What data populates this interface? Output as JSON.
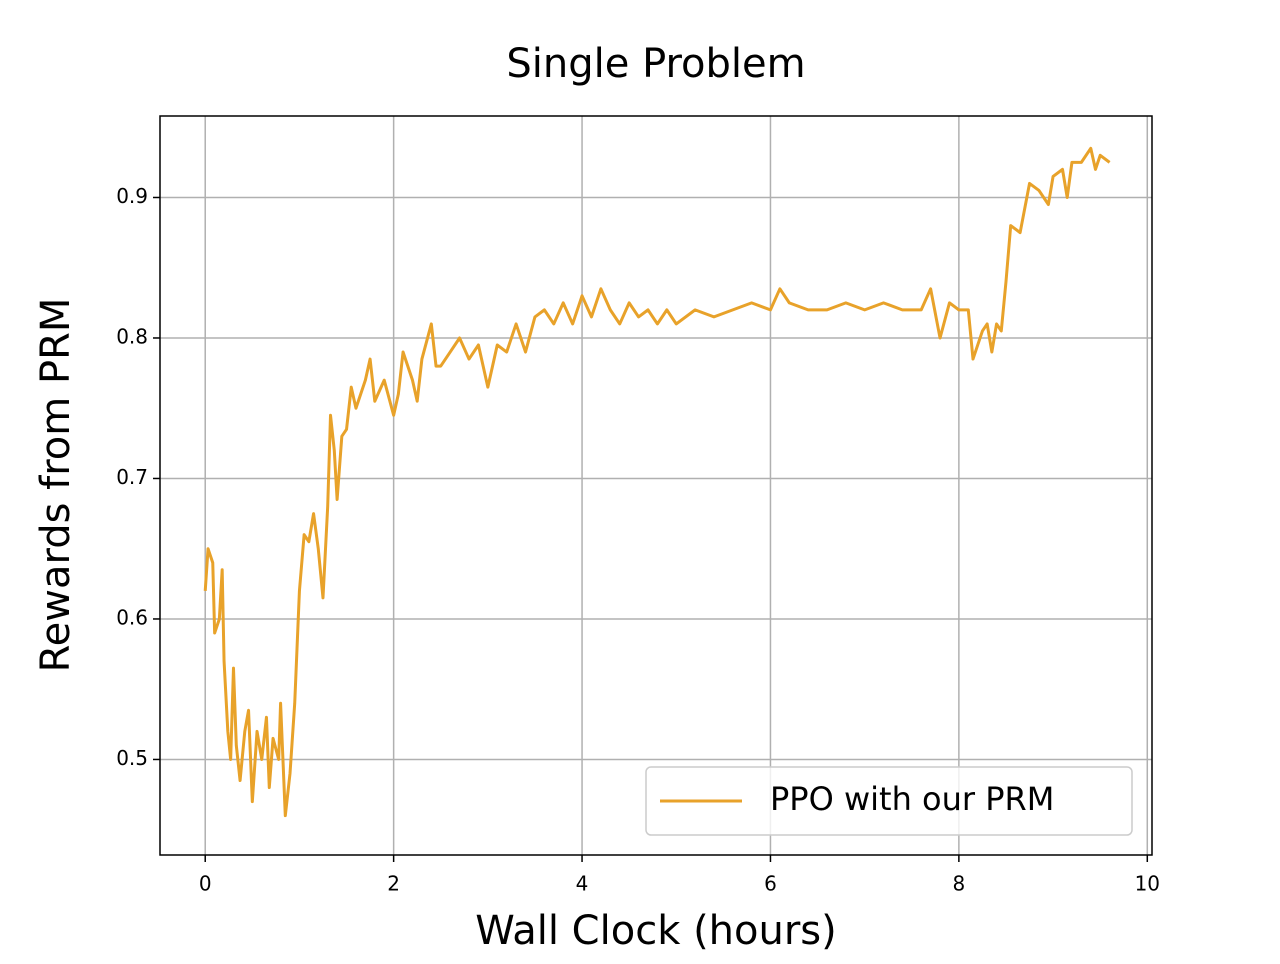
{
  "chart_data": {
    "type": "line",
    "title": "Single Problem",
    "x_label": "Wall Clock (hours)",
    "y_label": "Rewards from PRM",
    "xlim": [
      -0.48,
      10.05
    ],
    "ylim": [
      0.432,
      0.958
    ],
    "xticks": [
      0,
      2,
      4,
      6,
      8,
      10
    ],
    "yticks": [
      0.5,
      0.6,
      0.7,
      0.8,
      0.9
    ],
    "grid": true,
    "legend": "lower right",
    "x": [
      0,
      0.03,
      0.08,
      0.1,
      0.15,
      0.18,
      0.2,
      0.24,
      0.27,
      0.3,
      0.33,
      0.37,
      0.42,
      0.46,
      0.5,
      0.55,
      0.6,
      0.65,
      0.68,
      0.72,
      0.78,
      0.8,
      0.85,
      0.9,
      0.95,
      1.0,
      1.05,
      1.1,
      1.15,
      1.2,
      1.25,
      1.3,
      1.33,
      1.37,
      1.4,
      1.45,
      1.5,
      1.55,
      1.6,
      1.7,
      1.75,
      1.8,
      1.9,
      2.0,
      2.05,
      2.1,
      2.2,
      2.25,
      2.3,
      2.4,
      2.45,
      2.5,
      2.6,
      2.7,
      2.8,
      2.9,
      3.0,
      3.1,
      3.2,
      3.3,
      3.4,
      3.5,
      3.6,
      3.7,
      3.8,
      3.9,
      4.0,
      4.1,
      4.2,
      4.3,
      4.4,
      4.5,
      4.6,
      4.7,
      4.8,
      4.9,
      5.0,
      5.2,
      5.4,
      5.6,
      5.8,
      6.0,
      6.1,
      6.2,
      6.4,
      6.6,
      6.8,
      7.0,
      7.2,
      7.4,
      7.6,
      7.7,
      7.8,
      7.9,
      8.0,
      8.1,
      8.15,
      8.25,
      8.3,
      8.35,
      8.4,
      8.45,
      8.5,
      8.55,
      8.65,
      8.75,
      8.85,
      8.95,
      9.0,
      9.1,
      9.15,
      9.2,
      9.3,
      9.4,
      9.45,
      9.5,
      9.6
    ],
    "series": [
      {
        "name": "PPO with our PRM",
        "color": "#e8a22a",
        "values": [
          0.62,
          0.65,
          0.64,
          0.59,
          0.6,
          0.635,
          0.57,
          0.52,
          0.5,
          0.565,
          0.51,
          0.485,
          0.52,
          0.535,
          0.47,
          0.52,
          0.5,
          0.53,
          0.48,
          0.515,
          0.5,
          0.54,
          0.46,
          0.49,
          0.54,
          0.62,
          0.66,
          0.655,
          0.675,
          0.65,
          0.615,
          0.68,
          0.745,
          0.72,
          0.685,
          0.73,
          0.735,
          0.765,
          0.75,
          0.77,
          0.785,
          0.755,
          0.77,
          0.745,
          0.76,
          0.79,
          0.77,
          0.755,
          0.785,
          0.81,
          0.78,
          0.78,
          0.79,
          0.8,
          0.785,
          0.795,
          0.765,
          0.795,
          0.79,
          0.81,
          0.79,
          0.815,
          0.82,
          0.81,
          0.825,
          0.81,
          0.83,
          0.815,
          0.835,
          0.82,
          0.81,
          0.825,
          0.815,
          0.82,
          0.81,
          0.82,
          0.81,
          0.82,
          0.815,
          0.82,
          0.825,
          0.82,
          0.835,
          0.825,
          0.82,
          0.82,
          0.825,
          0.82,
          0.825,
          0.82,
          0.82,
          0.835,
          0.8,
          0.825,
          0.82,
          0.82,
          0.785,
          0.805,
          0.81,
          0.79,
          0.81,
          0.805,
          0.84,
          0.88,
          0.875,
          0.91,
          0.905,
          0.895,
          0.915,
          0.92,
          0.9,
          0.925,
          0.925,
          0.935,
          0.92,
          0.93,
          0.925
        ]
      }
    ]
  }
}
